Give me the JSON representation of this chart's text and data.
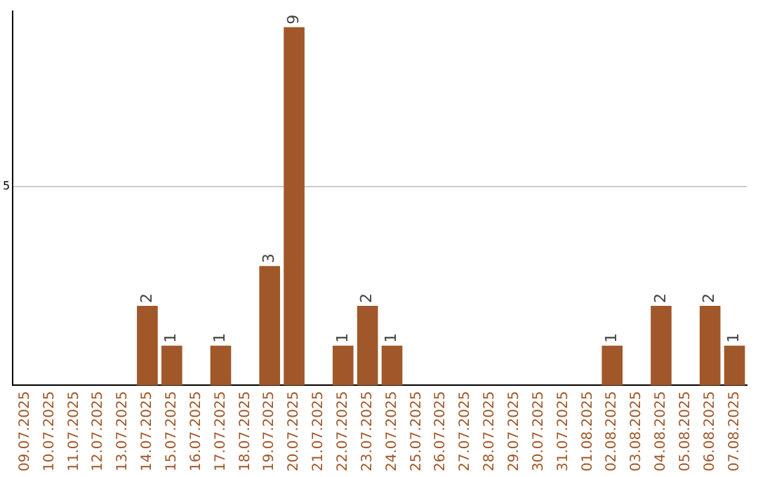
{
  "chart_data": {
    "type": "bar",
    "categories": [
      "09.07.2025",
      "10.07.2025",
      "11.07.2025",
      "12.07.2025",
      "13.07.2025",
      "14.07.2025",
      "15.07.2025",
      "16.07.2025",
      "17.07.2025",
      "18.07.2025",
      "19.07.2025",
      "20.07.2025",
      "21.07.2025",
      "22.07.2025",
      "23.07.2025",
      "24.07.2025",
      "25.07.2025",
      "26.07.2025",
      "27.07.2025",
      "28.07.2025",
      "29.07.2025",
      "30.07.2025",
      "31.07.2025",
      "01.08.2025",
      "02.08.2025",
      "03.08.2025",
      "04.08.2025",
      "05.08.2025",
      "06.08.2025",
      "07.08.2025"
    ],
    "values": [
      0,
      0,
      0,
      0,
      0,
      2,
      1,
      0,
      1,
      0,
      3,
      9,
      0,
      1,
      2,
      1,
      0,
      0,
      0,
      0,
      0,
      0,
      0,
      0,
      1,
      0,
      2,
      0,
      2,
      1
    ],
    "value_labels": [
      null,
      null,
      null,
      null,
      null,
      "2",
      "1",
      null,
      "1",
      null,
      "3",
      "9",
      null,
      "1",
      "2",
      "1",
      null,
      null,
      null,
      null,
      null,
      null,
      null,
      null,
      "1",
      null,
      "2",
      null,
      "2",
      "1"
    ],
    "color": "#a0582a",
    "ylim": [
      0,
      9.4
    ],
    "yticks": [
      5
    ],
    "grid": "y",
    "legend": false
  }
}
